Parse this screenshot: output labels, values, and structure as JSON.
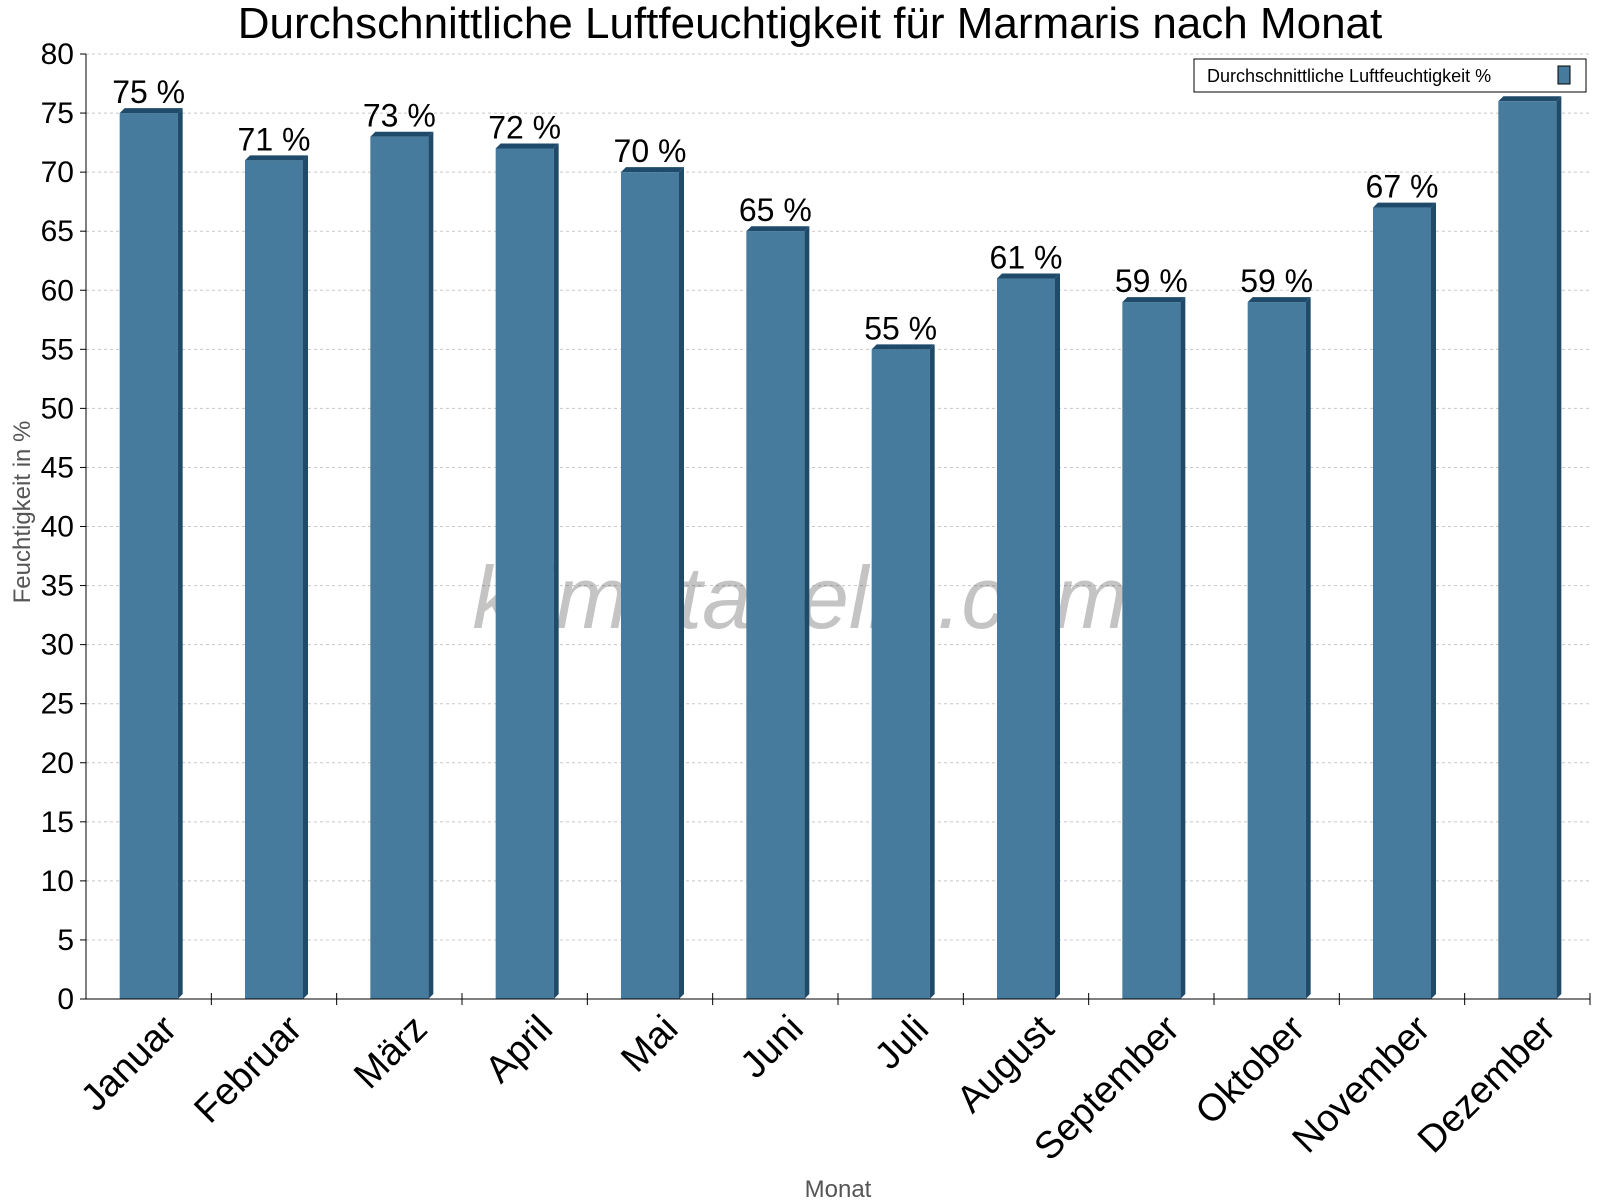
{
  "chart_data": {
    "type": "bar",
    "title": "Durchschnittliche Luftfeuchtigkeit für Marmaris nach Monat",
    "xlabel": "Monat",
    "ylabel": "Feuchtigkeit in %",
    "ylim": [
      0,
      80
    ],
    "ytick_step": 5,
    "grid": true,
    "legend_position": "top-right",
    "categories": [
      "Januar",
      "Februar",
      "März",
      "April",
      "Mai",
      "Juni",
      "Juli",
      "August",
      "September",
      "Oktober",
      "November",
      "Dezember"
    ],
    "series": [
      {
        "name": "Durchschnittliche Luftfeuchtigkeit %",
        "values": [
          75,
          71,
          73,
          72,
          70,
          65,
          55,
          61,
          59,
          59,
          67,
          76
        ],
        "labels": [
          "75 %",
          "71 %",
          "73 %",
          "72 %",
          "70 %",
          "65 %",
          "55 %",
          "61 %",
          "59 %",
          "59 %",
          "67 %",
          ""
        ],
        "color": "#467b9e",
        "shade_color": "#1f4a6a"
      }
    ],
    "watermark": "klimatabelle.com"
  }
}
